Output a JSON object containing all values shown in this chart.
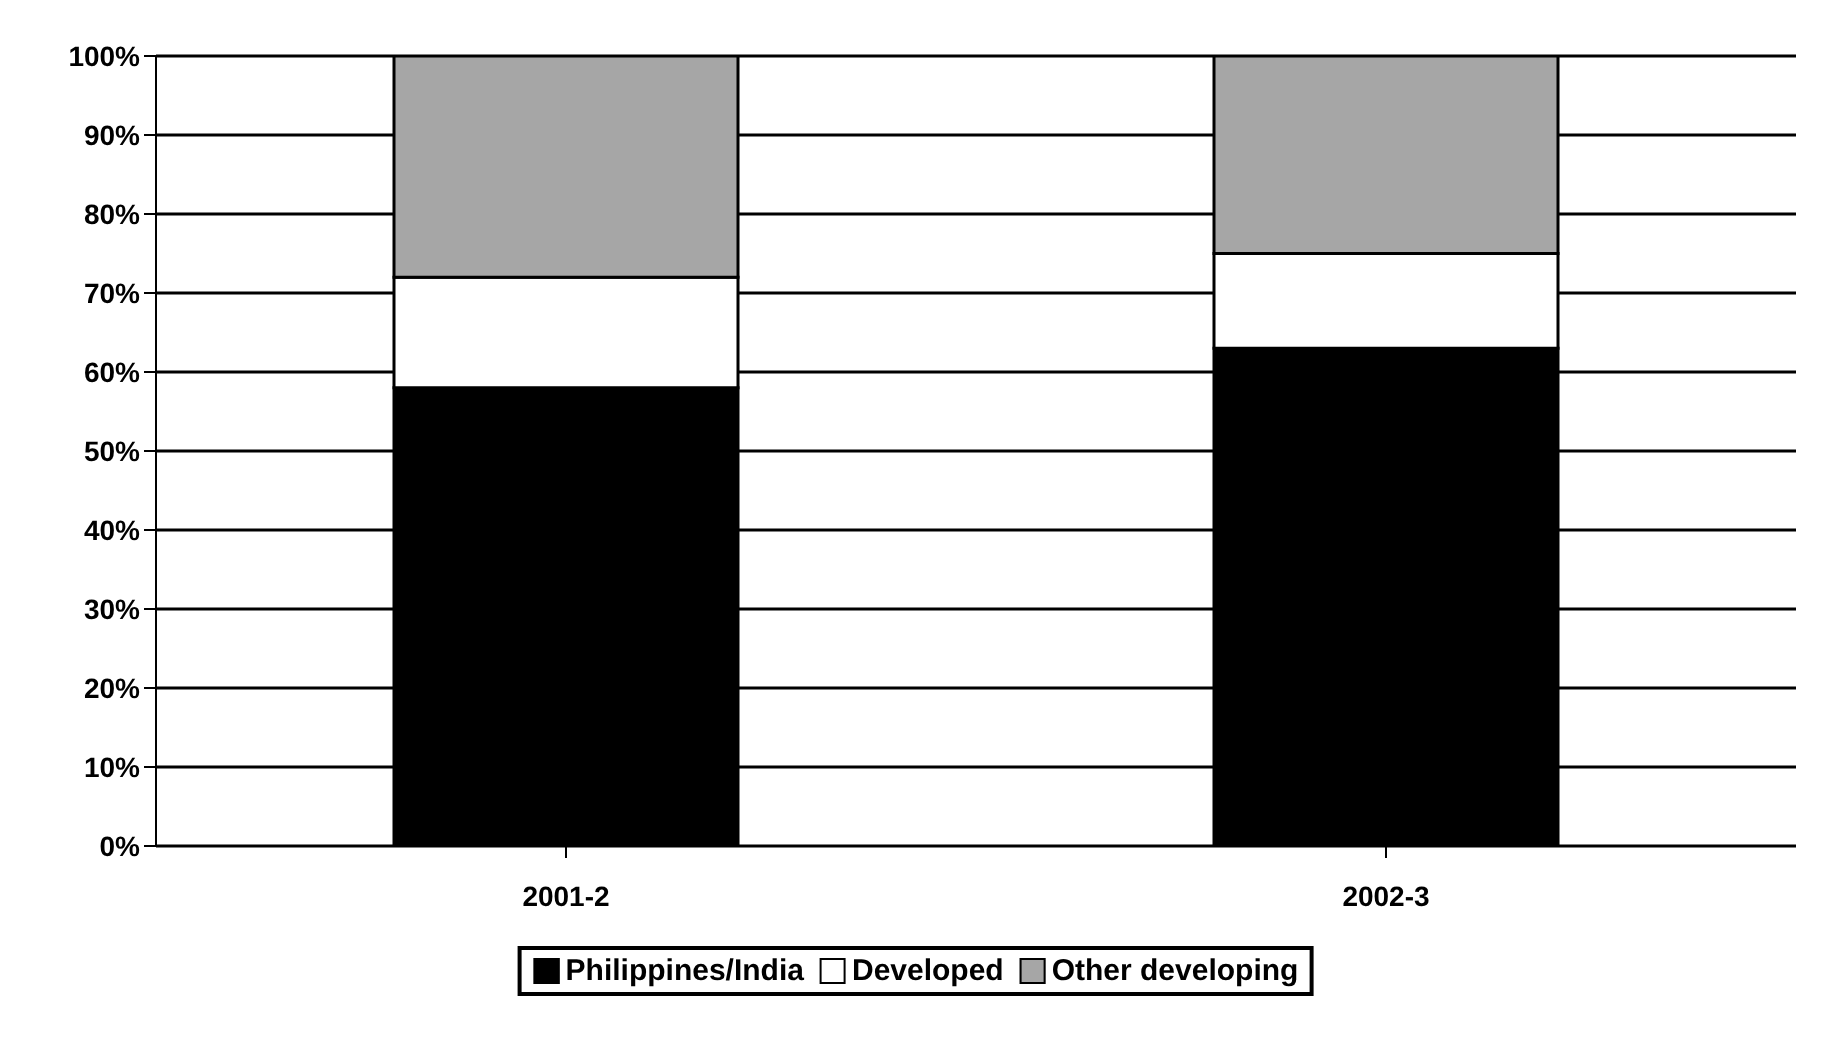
{
  "chart_data": {
    "type": "bar",
    "stacked": true,
    "categories": [
      "2001-2",
      "2002-3"
    ],
    "series": [
      {
        "name": "Philippines/India",
        "color": "#000000",
        "values": [
          58,
          63
        ]
      },
      {
        "name": "Developed",
        "color": "#ffffff",
        "values": [
          14,
          12
        ]
      },
      {
        "name": "Other developing",
        "color": "#a6a6a6",
        "values": [
          28,
          25
        ]
      }
    ],
    "ylim": [
      0,
      100
    ],
    "yticks": [
      {
        "value": 0,
        "label": "0%"
      },
      {
        "value": 10,
        "label": "10%"
      },
      {
        "value": 20,
        "label": "20%"
      },
      {
        "value": 30,
        "label": "30%"
      },
      {
        "value": 40,
        "label": "40%"
      },
      {
        "value": 50,
        "label": "50%"
      },
      {
        "value": 60,
        "label": "60%"
      },
      {
        "value": 70,
        "label": "70%"
      },
      {
        "value": 80,
        "label": "80%"
      },
      {
        "value": 90,
        "label": "90%"
      },
      {
        "value": 100,
        "label": "100%"
      }
    ],
    "grid": "y",
    "legend": "bottom"
  }
}
